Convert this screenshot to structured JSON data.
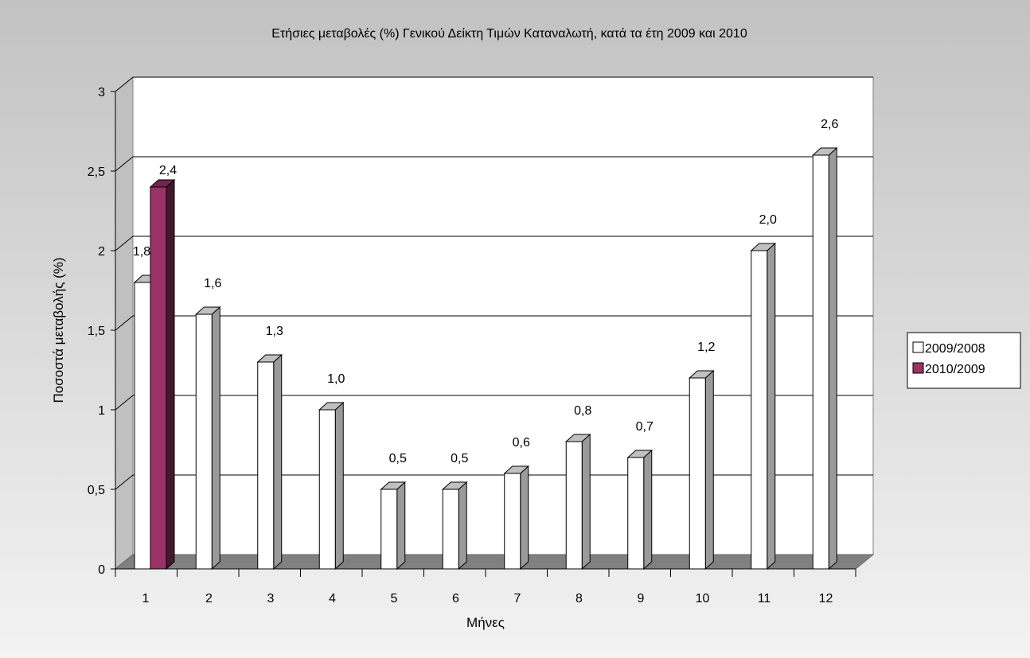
{
  "chart_data": {
    "type": "bar",
    "title": "Ετήσιες μεταβολές (%) Γενικού Δείκτη Τιμών Καταναλωτή, κατά τα έτη 2009 και 2010",
    "xlabel": "Μήνες",
    "ylabel": "Ποσοστά μεταβολής (%)",
    "categories": [
      "1",
      "2",
      "3",
      "4",
      "5",
      "6",
      "7",
      "8",
      "9",
      "10",
      "11",
      "12"
    ],
    "yticks": [
      {
        "value": 0,
        "label": "0"
      },
      {
        "value": 0.5,
        "label": "0,5"
      },
      {
        "value": 1,
        "label": "1"
      },
      {
        "value": 1.5,
        "label": "1,5"
      },
      {
        "value": 2,
        "label": "2"
      },
      {
        "value": 2.5,
        "label": "2,5"
      },
      {
        "value": 3,
        "label": "3"
      }
    ],
    "ylim": [
      0,
      3
    ],
    "grid": true,
    "legend_position": "right",
    "series": [
      {
        "name": "2009/2008",
        "color": "#ffffff",
        "values": [
          1.8,
          1.6,
          1.3,
          1.0,
          0.5,
          0.5,
          0.6,
          0.8,
          0.7,
          1.2,
          2.0,
          2.6
        ],
        "labels": [
          "1,8",
          "1,6",
          "1,3",
          "1,0",
          "0,5",
          "0,5",
          "0,6",
          "0,8",
          "0,7",
          "1,2",
          "2,0",
          "2,6"
        ]
      },
      {
        "name": "2010/2009",
        "color": "#993366",
        "values": [
          2.4,
          null,
          null,
          null,
          null,
          null,
          null,
          null,
          null,
          null,
          null,
          null
        ],
        "labels": [
          "2,4",
          null,
          null,
          null,
          null,
          null,
          null,
          null,
          null,
          null,
          null,
          null
        ]
      }
    ]
  }
}
